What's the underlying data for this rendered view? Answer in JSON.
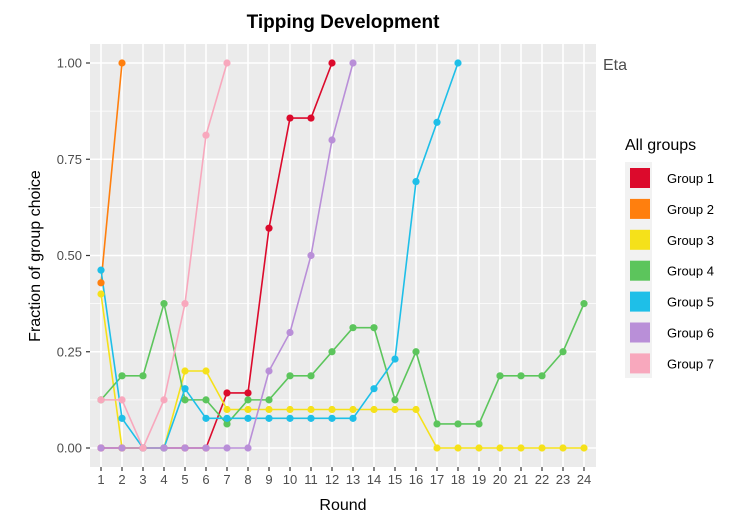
{
  "chart_data": {
    "type": "line",
    "title": "Tipping Development",
    "xlabel": "Round",
    "ylabel": "Fraction of group choice",
    "facet_label": "Eta",
    "xlim": [
      1,
      24
    ],
    "ylim": [
      0,
      1
    ],
    "x_ticks": [
      "1",
      "2",
      "3",
      "4",
      "5",
      "6",
      "7",
      "8",
      "9",
      "10",
      "11",
      "12",
      "13",
      "14",
      "15",
      "16",
      "17",
      "18",
      "19",
      "20",
      "21",
      "22",
      "23",
      "24"
    ],
    "y_ticks": [
      {
        "value": 0,
        "label": "0.00"
      },
      {
        "value": 0.25,
        "label": "0.25"
      },
      {
        "value": 0.5,
        "label": "0.50"
      },
      {
        "value": 0.75,
        "label": "0.75"
      },
      {
        "value": 1,
        "label": "1.00"
      }
    ],
    "grid": true,
    "legend": {
      "title": "All groups",
      "position": "right"
    },
    "series": [
      {
        "name": "Group 1",
        "color": "#DC0A2C",
        "x": [
          1,
          2,
          3,
          4,
          5,
          6,
          7,
          8,
          9,
          10,
          11,
          12
        ],
        "y": [
          0,
          0,
          0,
          0,
          0,
          0,
          0.143,
          0.143,
          0.571,
          0.857,
          0.857,
          1.0
        ]
      },
      {
        "name": "Group 2",
        "color": "#FF7F0E",
        "x": [
          1,
          2
        ],
        "y": [
          0.429,
          1.0
        ]
      },
      {
        "name": "Group 3",
        "color": "#F5E11A",
        "x": [
          1,
          2,
          3,
          4,
          5,
          6,
          7,
          8,
          9,
          10,
          11,
          12,
          13,
          14,
          15,
          16,
          17,
          18,
          19,
          20,
          21,
          22,
          23,
          24
        ],
        "y": [
          0.4,
          0,
          0,
          0,
          0.2,
          0.2,
          0.1,
          0.1,
          0.1,
          0.1,
          0.1,
          0.1,
          0.1,
          0.1,
          0.1,
          0.1,
          0,
          0,
          0,
          0,
          0,
          0,
          0,
          0
        ]
      },
      {
        "name": "Group 4",
        "color": "#5CC55C",
        "x": [
          1,
          2,
          3,
          4,
          5,
          6,
          7,
          8,
          9,
          10,
          11,
          12,
          13,
          14,
          15,
          16,
          17,
          18,
          19,
          20,
          21,
          22,
          23,
          24
        ],
        "y": [
          0.125,
          0.1875,
          0.1875,
          0.375,
          0.125,
          0.125,
          0.0625,
          0.125,
          0.125,
          0.1875,
          0.1875,
          0.25,
          0.3125,
          0.3125,
          0.125,
          0.25,
          0.0625,
          0.0625,
          0.0625,
          0.1875,
          0.1875,
          0.1875,
          0.25,
          0.375
        ]
      },
      {
        "name": "Group 5",
        "color": "#1EBFE8",
        "x": [
          1,
          2,
          3,
          4,
          5,
          6,
          7,
          8,
          9,
          10,
          11,
          12,
          13,
          14,
          15,
          16,
          17,
          18
        ],
        "y": [
          0.462,
          0.077,
          0,
          0,
          0.154,
          0.077,
          0.077,
          0.077,
          0.077,
          0.077,
          0.077,
          0.077,
          0.077,
          0.154,
          0.231,
          0.692,
          0.846,
          1.0
        ]
      },
      {
        "name": "Group 6",
        "color": "#B98FD8",
        "x": [
          1,
          2,
          3,
          4,
          5,
          6,
          7,
          8,
          9,
          10,
          11,
          12,
          13
        ],
        "y": [
          0,
          0,
          0,
          0,
          0,
          0,
          0,
          0,
          0.2,
          0.3,
          0.5,
          0.8,
          1.0
        ]
      },
      {
        "name": "Group 7",
        "color": "#F8A8BD",
        "x": [
          1,
          2,
          3,
          4,
          5,
          6,
          7
        ],
        "y": [
          0.125,
          0.125,
          0,
          0.125,
          0.375,
          0.8125,
          1.0
        ]
      }
    ]
  }
}
